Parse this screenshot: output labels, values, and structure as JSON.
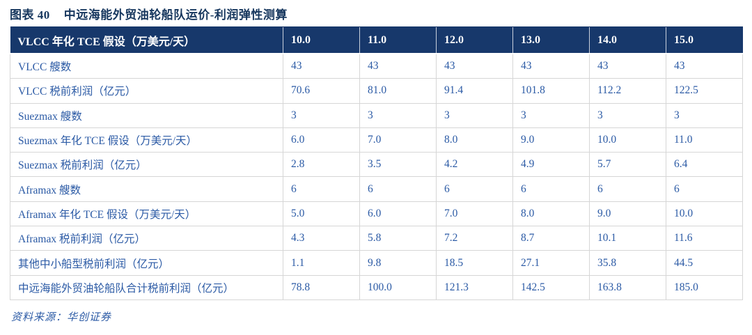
{
  "title": {
    "number": "图表 40",
    "text": "中远海能外贸油轮船队运价-利润弹性测算"
  },
  "source": {
    "label": "资料来源：",
    "value": "华创证券"
  },
  "colors": {
    "header_bg": "#17386B",
    "title_text": "#17375E",
    "cell_text": "#2B5AA5",
    "border": "#D6D6D6",
    "header_text": "#FFFFFF"
  },
  "chart_data": {
    "type": "table",
    "title": "中远海能外贸油轮船队运价-利润弹性测算",
    "header": {
      "label": "VLCC 年化 TCE 假设（万美元/天）",
      "columns": [
        "10.0",
        "11.0",
        "12.0",
        "13.0",
        "14.0",
        "15.0"
      ]
    },
    "rows": [
      {
        "label": "VLCC 艘数",
        "values": [
          "43",
          "43",
          "43",
          "43",
          "43",
          "43"
        ]
      },
      {
        "label": "VLCC 税前利润（亿元）",
        "values": [
          "70.6",
          "81.0",
          "91.4",
          "101.8",
          "112.2",
          "122.5"
        ]
      },
      {
        "label": "Suezmax 艘数",
        "values": [
          "3",
          "3",
          "3",
          "3",
          "3",
          "3"
        ]
      },
      {
        "label": "Suezmax 年化 TCE 假设（万美元/天）",
        "values": [
          "6.0",
          "7.0",
          "8.0",
          "9.0",
          "10.0",
          "11.0"
        ]
      },
      {
        "label": "Suezmax 税前利润（亿元）",
        "values": [
          "2.8",
          "3.5",
          "4.2",
          "4.9",
          "5.7",
          "6.4"
        ]
      },
      {
        "label": "Aframax 艘数",
        "values": [
          "6",
          "6",
          "6",
          "6",
          "6",
          "6"
        ]
      },
      {
        "label": "Aframax 年化 TCE 假设（万美元/天）",
        "values": [
          "5.0",
          "6.0",
          "7.0",
          "8.0",
          "9.0",
          "10.0"
        ]
      },
      {
        "label": "Aframax 税前利润（亿元）",
        "values": [
          "4.3",
          "5.8",
          "7.2",
          "8.7",
          "10.1",
          "11.6"
        ]
      },
      {
        "label": "其他中小船型税前利润（亿元）",
        "values": [
          "1.1",
          "9.8",
          "18.5",
          "27.1",
          "35.8",
          "44.5"
        ]
      },
      {
        "label": "中远海能外贸油轮船队合计税前利润（亿元）",
        "values": [
          "78.8",
          "100.0",
          "121.3",
          "142.5",
          "163.8",
          "185.0"
        ]
      }
    ]
  }
}
